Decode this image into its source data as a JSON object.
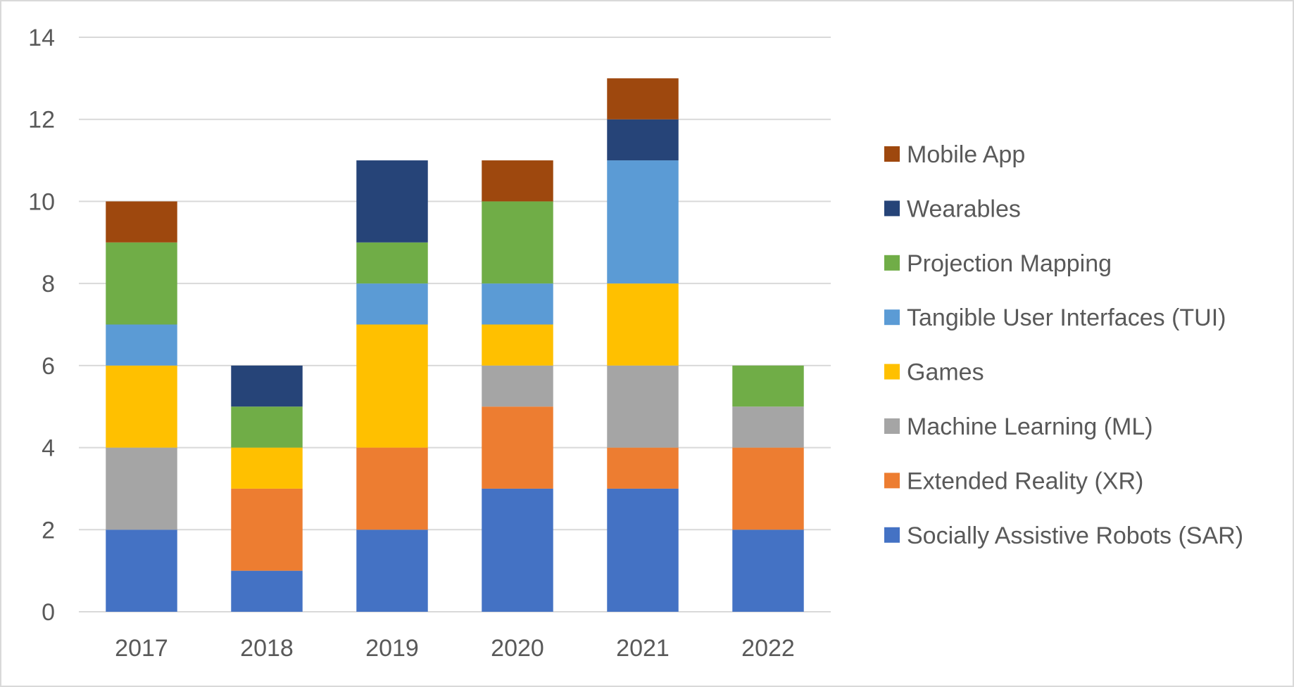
{
  "chart_data": {
    "type": "bar",
    "stacked": true,
    "title": "",
    "xlabel": "",
    "ylabel": "",
    "ylim": [
      0,
      14
    ],
    "ytick_step": 2,
    "yticks": [
      "0",
      "2",
      "4",
      "6",
      "8",
      "10",
      "12",
      "14"
    ],
    "grid": true,
    "legend_position": "right",
    "categories": [
      "2017",
      "2018",
      "2019",
      "2020",
      "2021",
      "2022"
    ],
    "series": [
      {
        "name": "Socially Assistive Robots (SAR)",
        "color": "#4472C4",
        "values": [
          2,
          1,
          2,
          3,
          3,
          2
        ]
      },
      {
        "name": "Extended Reality (XR)",
        "color": "#ED7D31",
        "values": [
          0,
          2,
          2,
          2,
          1,
          2
        ]
      },
      {
        "name": "Machine Learning (ML)",
        "color": "#A5A5A5",
        "values": [
          2,
          0,
          0,
          1,
          2,
          1
        ]
      },
      {
        "name": "Games",
        "color": "#FFC000",
        "values": [
          2,
          1,
          3,
          1,
          2,
          0
        ]
      },
      {
        "name": "Tangible User Interfaces (TUI)",
        "color": "#5B9BD5",
        "values": [
          1,
          0,
          1,
          1,
          3,
          0
        ]
      },
      {
        "name": "Projection Mapping",
        "color": "#70AD47",
        "values": [
          2,
          1,
          1,
          2,
          0,
          1
        ]
      },
      {
        "name": "Wearables",
        "color": "#264478",
        "values": [
          0,
          1,
          2,
          0,
          1,
          0
        ]
      },
      {
        "name": "Mobile App",
        "color": "#9E480E",
        "values": [
          1,
          0,
          0,
          1,
          1,
          0
        ]
      }
    ]
  }
}
